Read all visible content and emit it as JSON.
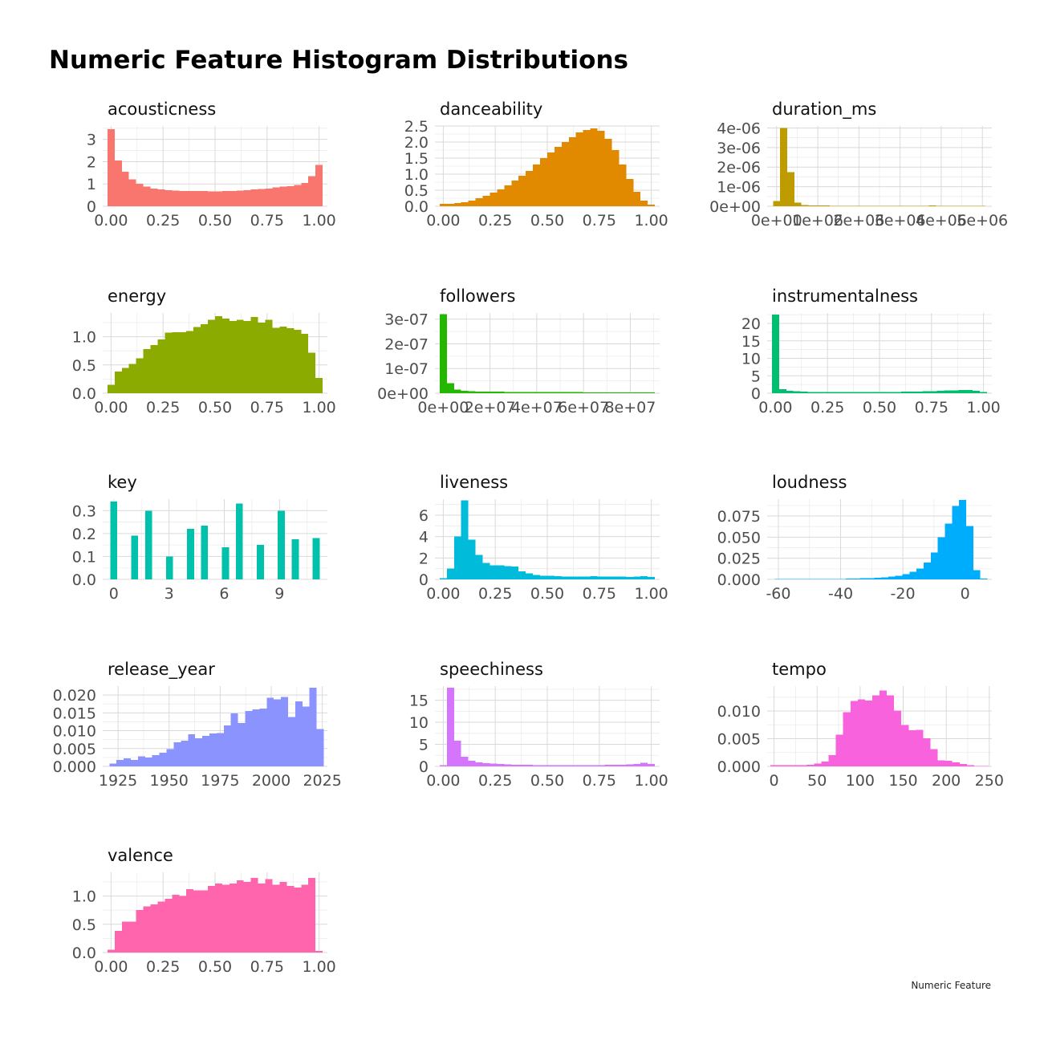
{
  "title": "Numeric Feature Histogram Distributions",
  "caption": "Numeric Feature",
  "chart_data": [
    {
      "type": "bar",
      "title": "acousticness",
      "color": "#F8766D",
      "x_range": [
        -0.04,
        1.04
      ],
      "ylim": [
        0,
        3.6
      ],
      "x_ticks": [
        0,
        0.25,
        0.5,
        0.75,
        1
      ],
      "x_tick_labels": [
        "0.00",
        "0.25",
        "0.50",
        "0.75",
        "1.00"
      ],
      "y_ticks": [
        0,
        1,
        2,
        3
      ],
      "y_tick_labels": [
        "0",
        "1",
        "2",
        "3"
      ],
      "bin_width": 0.03448,
      "bin_start": -0.01724,
      "values": [
        3.45,
        2.05,
        1.55,
        1.2,
        1.0,
        0.88,
        0.8,
        0.75,
        0.72,
        0.7,
        0.68,
        0.68,
        0.68,
        0.68,
        0.67,
        0.67,
        0.68,
        0.68,
        0.7,
        0.72,
        0.75,
        0.78,
        0.8,
        0.85,
        0.88,
        0.9,
        0.95,
        1.05,
        1.35,
        1.85
      ]
    },
    {
      "type": "bar",
      "title": "danceability",
      "color": "#E18A00",
      "x_range": [
        -0.04,
        1.04
      ],
      "ylim": [
        0,
        2.5
      ],
      "x_ticks": [
        0,
        0.25,
        0.5,
        0.75,
        1
      ],
      "x_tick_labels": [
        "0.00",
        "0.25",
        "0.50",
        "0.75",
        "1.00"
      ],
      "y_ticks": [
        0,
        0.5,
        1,
        1.5,
        2,
        2.5
      ],
      "y_tick_labels": [
        "0.0",
        "0.5",
        "1.0",
        "1.5",
        "2.0",
        "2.5"
      ],
      "bin_width": 0.03448,
      "bin_start": -0.01724,
      "values": [
        0.08,
        0.08,
        0.1,
        0.13,
        0.18,
        0.25,
        0.33,
        0.42,
        0.52,
        0.65,
        0.8,
        0.95,
        1.1,
        1.3,
        1.5,
        1.68,
        1.85,
        2.0,
        2.15,
        2.3,
        2.38,
        2.42,
        2.35,
        2.1,
        1.75,
        1.3,
        0.85,
        0.45,
        0.18,
        0.05
      ]
    },
    {
      "type": "bar",
      "title": "duration_ms",
      "color": "#BE9C00",
      "x_range": [
        -230000,
        5230000
      ],
      "ylim": [
        0,
        4.1e-06
      ],
      "x_ticks": [
        0,
        1000000,
        2000000,
        3000000,
        4000000,
        5000000
      ],
      "x_tick_labels": [
        "0e+00",
        "1e+06",
        "2e+06",
        "3e+06",
        "4e+06",
        "5e+06"
      ],
      "y_ticks": [
        0,
        1e-06,
        2e-06,
        3e-06,
        4e-06
      ],
      "y_tick_labels": [
        "0e+00",
        "1e-06",
        "2e-06",
        "3e-06",
        "4e-06"
      ],
      "bin_width": 172000,
      "bin_start": -86000,
      "values": [
        2.6e-07,
        4e-06,
        1.75e-06,
        1.8e-07,
        7e-08,
        5e-08,
        4e-08,
        4e-08,
        3e-08,
        3e-08,
        3e-08,
        3e-08,
        3e-08,
        3e-08,
        3e-08,
        3e-08,
        3e-08,
        3e-08,
        3e-08,
        3e-08,
        3e-08,
        3e-08,
        4e-08,
        3e-08,
        3e-08,
        3e-08,
        3e-08,
        3e-08,
        3e-08,
        3e-08
      ]
    },
    {
      "type": "bar",
      "title": "energy",
      "color": "#8CAB00",
      "x_range": [
        -0.04,
        1.04
      ],
      "ylim": [
        0,
        1.42
      ],
      "x_ticks": [
        0,
        0.25,
        0.5,
        0.75,
        1
      ],
      "x_tick_labels": [
        "0.00",
        "0.25",
        "0.50",
        "0.75",
        "1.00"
      ],
      "y_ticks": [
        0,
        0.5,
        1
      ],
      "y_tick_labels": [
        "0.0",
        "0.5",
        "1.0"
      ],
      "bin_width": 0.03448,
      "bin_start": -0.01724,
      "values": [
        0.15,
        0.38,
        0.45,
        0.52,
        0.62,
        0.78,
        0.85,
        0.95,
        1.07,
        1.08,
        1.08,
        1.1,
        1.17,
        1.22,
        1.3,
        1.36,
        1.32,
        1.28,
        1.3,
        1.28,
        1.35,
        1.25,
        1.3,
        1.16,
        1.18,
        1.15,
        1.12,
        1.05,
        0.72,
        0.27
      ]
    },
    {
      "type": "bar",
      "title": "followers",
      "color": "#24B700",
      "x_range": [
        -3560000,
        92560000
      ],
      "ylim": [
        0,
        3.25e-07
      ],
      "x_ticks": [
        0,
        20000000,
        40000000,
        60000000,
        80000000
      ],
      "x_tick_labels": [
        "0e+00",
        "2e+07",
        "4e+07",
        "6e+07",
        "8e+07"
      ],
      "y_ticks": [
        0,
        1e-07,
        2e-07,
        3e-07
      ],
      "y_tick_labels": [
        "0e+00",
        "1e-07",
        "2e-07",
        "3e-07"
      ],
      "bin_width": 3066000,
      "bin_start": -1533000,
      "values": [
        3.2e-07,
        4e-08,
        1.4e-08,
        9e-09,
        8e-09,
        7e-09,
        6e-09,
        6e-09,
        6e-09,
        5e-09,
        5e-09,
        5e-09,
        5e-09,
        5e-09,
        5e-09,
        5e-09,
        5e-09,
        5e-09,
        5e-09,
        5e-09,
        4e-09,
        4e-09,
        4e-09,
        4e-09,
        4e-09,
        4e-09,
        4e-09,
        4e-09,
        4e-09,
        4e-09
      ]
    },
    {
      "type": "bar",
      "title": "instrumentalness",
      "color": "#00BE70",
      "x_range": [
        -0.04,
        1.04
      ],
      "ylim": [
        0,
        23
      ],
      "x_ticks": [
        0,
        0.25,
        0.5,
        0.75,
        1
      ],
      "x_tick_labels": [
        "0.00",
        "0.25",
        "0.50",
        "0.75",
        "1.00"
      ],
      "y_ticks": [
        0,
        5,
        10,
        15,
        20
      ],
      "y_tick_labels": [
        "0",
        "5",
        "10",
        "15",
        "20"
      ],
      "bin_width": 0.03448,
      "bin_start": -0.01724,
      "values": [
        22.5,
        1.2,
        0.7,
        0.55,
        0.45,
        0.4,
        0.38,
        0.36,
        0.35,
        0.35,
        0.34,
        0.34,
        0.34,
        0.35,
        0.36,
        0.37,
        0.38,
        0.4,
        0.42,
        0.45,
        0.48,
        0.52,
        0.58,
        0.65,
        0.75,
        0.85,
        0.95,
        0.9,
        0.7,
        0.4
      ]
    },
    {
      "type": "bar",
      "title": "key",
      "color": "#00C1AB",
      "x_range": [
        -0.6,
        11.6
      ],
      "ylim": [
        0,
        0.35
      ],
      "x_ticks": [
        0,
        3,
        6,
        9
      ],
      "x_tick_labels": [
        "0",
        "3",
        "6",
        "9"
      ],
      "y_ticks": [
        0,
        0.1,
        0.2,
        0.3
      ],
      "y_tick_labels": [
        "0.0",
        "0.1",
        "0.2",
        "0.3"
      ],
      "bin_width": 0.379,
      "bin_start": -0.19,
      "values": [
        0.34,
        0.0,
        0.0,
        0.19,
        0.0,
        0.3,
        0.0,
        0.0,
        0.1,
        0.0,
        0.0,
        0.22,
        0.0,
        0.235,
        0.0,
        0.0,
        0.14,
        0.0,
        0.33,
        0.0,
        0.0,
        0.15,
        0.0,
        0.0,
        0.3,
        0.0,
        0.175,
        0.0,
        0.0,
        0.18
      ]
    },
    {
      "type": "bar",
      "title": "liveness",
      "color": "#00BBDA",
      "x_range": [
        -0.04,
        1.04
      ],
      "ylim": [
        0,
        7.5
      ],
      "x_ticks": [
        0,
        0.25,
        0.5,
        0.75,
        1
      ],
      "x_tick_labels": [
        "0.00",
        "0.25",
        "0.50",
        "0.75",
        "1.00"
      ],
      "y_ticks": [
        0,
        2,
        4,
        6
      ],
      "y_tick_labels": [
        "0",
        "2",
        "4",
        "6"
      ],
      "bin_width": 0.03448,
      "bin_start": -0.01724,
      "values": [
        0.1,
        1.0,
        4.0,
        7.4,
        3.7,
        2.3,
        1.55,
        1.3,
        1.3,
        1.25,
        1.2,
        0.75,
        0.55,
        0.4,
        0.35,
        0.32,
        0.3,
        0.28,
        0.27,
        0.27,
        0.28,
        0.3,
        0.27,
        0.26,
        0.25,
        0.25,
        0.24,
        0.25,
        0.3,
        0.24
      ]
    },
    {
      "type": "bar",
      "title": "loudness",
      "color": "#00ACFC",
      "x_range": [
        -63.6,
        8.6
      ],
      "ylim": [
        0,
        0.095
      ],
      "x_ticks": [
        -60,
        -40,
        -20,
        0
      ],
      "x_tick_labels": [
        "-60",
        "-40",
        "-20",
        "0"
      ],
      "y_ticks": [
        0,
        0.025,
        0.05,
        0.075
      ],
      "y_tick_labels": [
        "0.000",
        "0.025",
        "0.050",
        "0.075"
      ],
      "bin_width": 2.276,
      "bin_start": -61.1,
      "values": [
        0.0005,
        0.0005,
        0.0005,
        0.0005,
        0.0005,
        0.0005,
        0.0005,
        0.0005,
        0.0006,
        0.0007,
        0.0008,
        0.001,
        0.0012,
        0.0015,
        0.0019,
        0.0025,
        0.0034,
        0.0045,
        0.006,
        0.009,
        0.013,
        0.02,
        0.032,
        0.05,
        0.066,
        0.087,
        0.094,
        0.063,
        0.011,
        0.001
      ]
    },
    {
      "type": "bar",
      "title": "release_year",
      "color": "#8B93FF",
      "x_range": [
        1917.5,
        2027.5
      ],
      "ylim": [
        0,
        0.0225
      ],
      "x_ticks": [
        1925,
        1950,
        1975,
        2000,
        2025
      ],
      "x_tick_labels": [
        "1925",
        "1950",
        "1975",
        "2000",
        "2025"
      ],
      "y_ticks": [
        0,
        0.005,
        0.01,
        0.015,
        0.02
      ],
      "y_tick_labels": [
        "0.000",
        "0.005",
        "0.010",
        "0.015",
        "0.020"
      ],
      "bin_width": 3.5,
      "bin_start": 1920.75,
      "values": [
        0.0008,
        0.0018,
        0.0022,
        0.0018,
        0.0028,
        0.0025,
        0.0032,
        0.0038,
        0.0048,
        0.0068,
        0.0072,
        0.009,
        0.0079,
        0.0085,
        0.0092,
        0.0093,
        0.0115,
        0.0148,
        0.0122,
        0.0155,
        0.016,
        0.0162,
        0.0192,
        0.0188,
        0.0195,
        0.0138,
        0.0182,
        0.0168,
        0.022,
        0.0105
      ]
    },
    {
      "type": "bar",
      "title": "speechiness",
      "color": "#D575FE",
      "x_range": [
        -0.04,
        1.04
      ],
      "ylim": [
        0,
        18.2
      ],
      "x_ticks": [
        0,
        0.25,
        0.5,
        0.75,
        1
      ],
      "x_tick_labels": [
        "0.00",
        "0.25",
        "0.50",
        "0.75",
        "1.00"
      ],
      "y_ticks": [
        0,
        5,
        10,
        15
      ],
      "y_tick_labels": [
        "0",
        "5",
        "10",
        "15"
      ],
      "bin_width": 0.03448,
      "bin_start": -0.01724,
      "values": [
        0.3,
        17.8,
        5.8,
        2.2,
        1.3,
        0.95,
        0.75,
        0.6,
        0.52,
        0.45,
        0.4,
        0.35,
        0.32,
        0.3,
        0.28,
        0.27,
        0.26,
        0.26,
        0.26,
        0.26,
        0.27,
        0.28,
        0.3,
        0.32,
        0.36,
        0.4,
        0.48,
        0.55,
        0.85,
        0.55
      ]
    },
    {
      "type": "bar",
      "title": "tempo",
      "color": "#F962DD",
      "x_range": [
        -8,
        253
      ],
      "ylim": [
        0,
        0.0145
      ],
      "x_ticks": [
        0,
        50,
        100,
        150,
        200,
        250
      ],
      "x_tick_labels": [
        "0",
        "50",
        "100",
        "150",
        "200",
        "250"
      ],
      "y_ticks": [
        0,
        0.005,
        0.01
      ],
      "y_tick_labels": [
        "0.000",
        "0.005",
        "0.010"
      ],
      "bin_width": 8.45,
      "bin_start": -4.2,
      "values": [
        0.0002,
        0.0002,
        0.0002,
        0.0002,
        0.0002,
        0.0003,
        0.0005,
        0.0009,
        0.002,
        0.0057,
        0.0098,
        0.0118,
        0.0121,
        0.0119,
        0.0128,
        0.0137,
        0.0128,
        0.0101,
        0.0075,
        0.0065,
        0.0066,
        0.0051,
        0.0031,
        0.0011,
        0.001,
        0.0007,
        0.0004,
        0.0002,
        0.0001,
        0.0001
      ]
    },
    {
      "type": "bar",
      "title": "valence",
      "color": "#FF65AC",
      "x_range": [
        -0.04,
        1.04
      ],
      "ylim": [
        0,
        1.42
      ],
      "x_ticks": [
        0,
        0.25,
        0.5,
        0.75,
        1
      ],
      "x_tick_labels": [
        "0.00",
        "0.25",
        "0.50",
        "0.75",
        "1.00"
      ],
      "y_ticks": [
        0,
        0.5,
        1
      ],
      "y_tick_labels": [
        "0.0",
        "0.5",
        "1.0"
      ],
      "bin_width": 0.03448,
      "bin_start": -0.01724,
      "values": [
        0.05,
        0.38,
        0.55,
        0.55,
        0.75,
        0.82,
        0.85,
        0.9,
        0.95,
        1.02,
        1.0,
        1.12,
        1.1,
        1.1,
        1.18,
        1.22,
        1.2,
        1.22,
        1.28,
        1.25,
        1.32,
        1.22,
        1.3,
        1.2,
        1.25,
        1.18,
        1.15,
        1.2,
        1.32,
        0.03
      ]
    }
  ]
}
